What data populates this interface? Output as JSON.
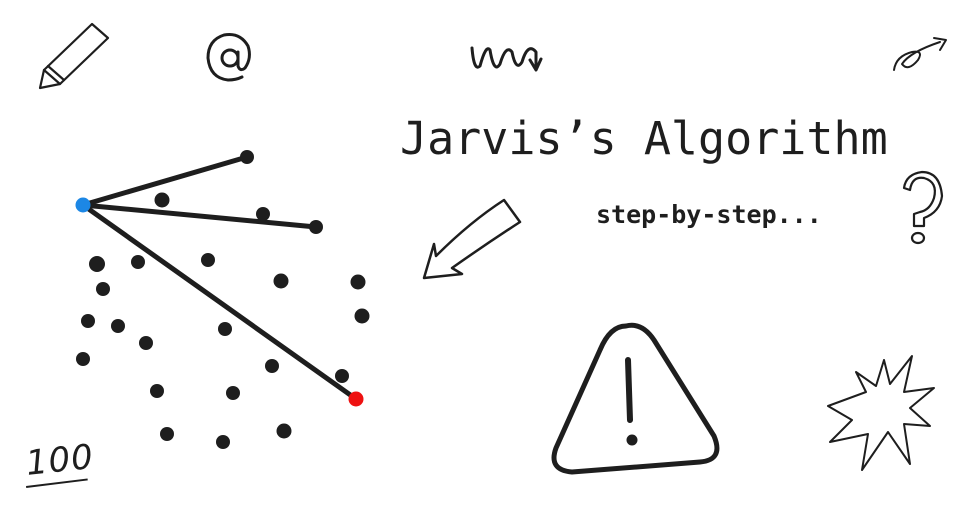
{
  "title": "Jarvis’s Algorithm",
  "subtitle": "step-by-step...",
  "badge_text": "100",
  "colors": {
    "ink": "#1e1e1e",
    "start_point": "#1c87e5",
    "candidate_point": "#ee1111"
  },
  "icons": [
    "pencil-icon",
    "at-sign-icon",
    "squiggle-arrow-icon",
    "curl-arrow-icon",
    "question-mark-icon",
    "left-arrow-icon",
    "warning-icon",
    "explosion-icon"
  ]
}
